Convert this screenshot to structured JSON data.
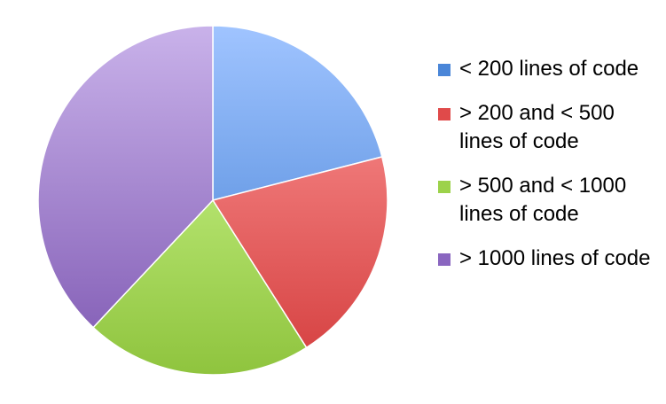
{
  "chart_data": {
    "type": "pie",
    "title": "",
    "slices": [
      {
        "label": "< 200 lines of code",
        "value": 21,
        "color_light": "#a0c4ff",
        "color_dark": "#3e7cd2"
      },
      {
        "label": "> 200 and < 500 lines of code",
        "value": 20,
        "color_light": "#ff9a9a",
        "color_dark": "#d43e3e"
      },
      {
        "label": "> 500 and < 1000 lines of code",
        "value": 21,
        "color_light": "#d6ff9a",
        "color_dark": "#8fc43e"
      },
      {
        "label": "> 1000 lines of code",
        "value": 38,
        "color_light": "#c9b2ea",
        "color_dark": "#7e58b2"
      }
    ],
    "start_angle": "12 o'clock",
    "direction": "clockwise",
    "legend_position": "right"
  },
  "legend": {
    "items": [
      {
        "label": "< 200 lines of code",
        "color": "#4a86d8"
      },
      {
        "label": "> 200 and < 500 lines of code",
        "color": "#e04a4a"
      },
      {
        "label": "> 500 and < 1000 lines of code",
        "color": "#9cd24a"
      },
      {
        "label": "> 1000 lines of code",
        "color": "#8a66c0"
      }
    ]
  }
}
